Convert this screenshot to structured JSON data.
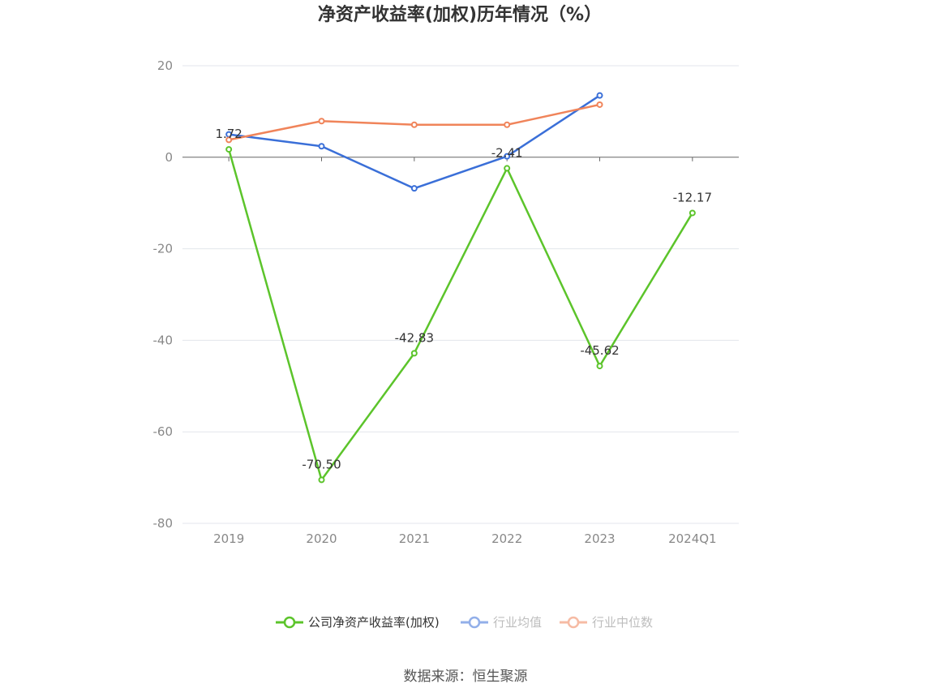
{
  "chart_data": {
    "type": "line",
    "title": "净资产收益率(加权)历年情况（%）",
    "categories": [
      "2019",
      "2020",
      "2021",
      "2022",
      "2023",
      "2024Q1"
    ],
    "ylim": [
      -80,
      20
    ],
    "yticks": [
      20,
      0,
      -20,
      -40,
      -60,
      -80
    ],
    "grid": true,
    "legend_position": "bottom",
    "series": [
      {
        "name": "公司净资产收益率(加权)",
        "color": "#5cc42b",
        "values": [
          1.72,
          -70.5,
          -42.83,
          -2.41,
          -45.62,
          -12.17
        ],
        "labels": [
          "1.72",
          "-70.50",
          "-42.83",
          "-2.41",
          "-45.62",
          "-12.17"
        ]
      },
      {
        "name": "行业均值",
        "color": "#3a6fd8",
        "values": [
          5.0,
          2.4,
          -6.8,
          0.2,
          13.5,
          null
        ]
      },
      {
        "name": "行业中位数",
        "color": "#f0845a",
        "values": [
          3.8,
          7.9,
          7.1,
          7.1,
          11.5,
          null
        ]
      }
    ],
    "source": "数据来源：恒生聚源"
  }
}
